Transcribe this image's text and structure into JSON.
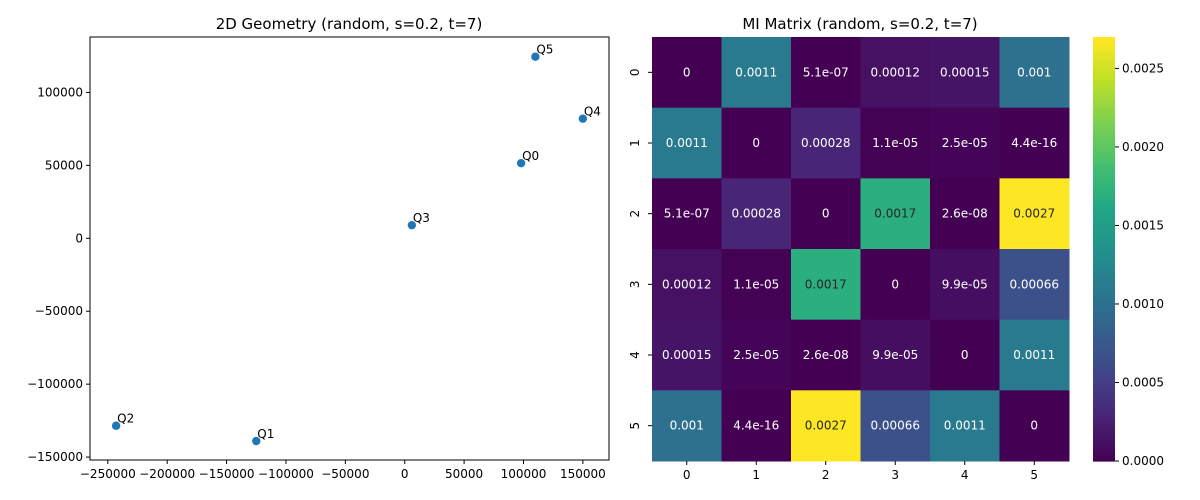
{
  "chart_data": [
    {
      "type": "scatter",
      "title": "2D Geometry (random, s=0.2, t=7)",
      "xlabel": "",
      "ylabel": "",
      "xlim": [
        -265000,
        172000
      ],
      "ylim": [
        -152000,
        138000
      ],
      "xticks": [
        -250000,
        -200000,
        -150000,
        -100000,
        -50000,
        0,
        50000,
        100000,
        150000
      ],
      "xtick_labels": [
        "−250000",
        "−200000",
        "−150000",
        "−100000",
        "−50000",
        "0",
        "50000",
        "100000",
        "150000"
      ],
      "yticks": [
        -150000,
        -100000,
        -50000,
        0,
        50000,
        100000
      ],
      "ytick_labels": [
        "−150000",
        "−100000",
        "−50000",
        "0",
        "50000",
        "100000"
      ],
      "grid": false,
      "marker_color": "#1f77b4",
      "points": [
        {
          "label": "Q0",
          "x": 98000,
          "y": 51500
        },
        {
          "label": "Q1",
          "x": -125000,
          "y": -139000
        },
        {
          "label": "Q2",
          "x": -243000,
          "y": -128500
        },
        {
          "label": "Q3",
          "x": 6000,
          "y": 9000
        },
        {
          "label": "Q4",
          "x": 150000,
          "y": 82000
        },
        {
          "label": "Q5",
          "x": 110000,
          "y": 124500
        }
      ]
    },
    {
      "type": "heatmap",
      "title": "MI Matrix (random, s=0.2, t=7)",
      "colormap": "viridis",
      "x_categories": [
        "0",
        "1",
        "2",
        "3",
        "4",
        "5"
      ],
      "y_categories": [
        "0",
        "1",
        "2",
        "3",
        "4",
        "5"
      ],
      "vmin": 0,
      "vmax": 0.0027,
      "colorbar_ticks": [
        0,
        0.0005,
        0.001,
        0.0015,
        0.002,
        0.0025
      ],
      "colorbar_tick_labels": [
        "0.0000",
        "0.0005",
        "0.0010",
        "0.0015",
        "0.0020",
        "0.0025"
      ],
      "values": [
        [
          0,
          0.0011,
          5.1e-07,
          0.00012,
          0.00015,
          0.001
        ],
        [
          0.0011,
          0,
          0.00028,
          1.1e-05,
          2.5e-05,
          4.4e-16
        ],
        [
          5.1e-07,
          0.00028,
          0,
          0.0017,
          2.6e-08,
          0.0027
        ],
        [
          0.00012,
          1.1e-05,
          0.0017,
          0,
          9.9e-05,
          0.00066
        ],
        [
          0.00015,
          2.5e-05,
          2.6e-08,
          9.9e-05,
          0,
          0.0011
        ],
        [
          0.001,
          4.4e-16,
          0.0027,
          0.00066,
          0.0011,
          0
        ]
      ],
      "annotations": [
        [
          "0",
          "0.0011",
          "5.1e-07",
          "0.00012",
          "0.00015",
          "0.001"
        ],
        [
          "0.0011",
          "0",
          "0.00028",
          "1.1e-05",
          "2.5e-05",
          "4.4e-16"
        ],
        [
          "5.1e-07",
          "0.00028",
          "0",
          "0.0017",
          "2.6e-08",
          "0.0027"
        ],
        [
          "0.00012",
          "1.1e-05",
          "0.0017",
          "0",
          "9.9e-05",
          "0.00066"
        ],
        [
          "0.00015",
          "2.5e-05",
          "2.6e-08",
          "9.9e-05",
          "0",
          "0.0011"
        ],
        [
          "0.001",
          "4.4e-16",
          "0.0027",
          "0.00066",
          "0.0011",
          "0"
        ]
      ]
    }
  ]
}
